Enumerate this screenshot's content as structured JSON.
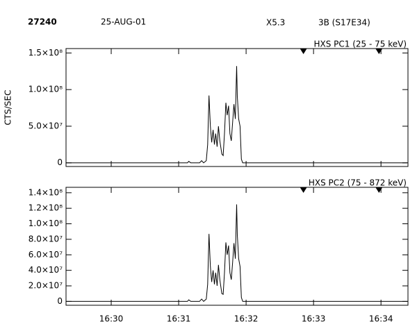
{
  "header": {
    "event": "27240",
    "date": "25-AUG-01",
    "class": "X5.3",
    "flare": "3B (S17E34)"
  },
  "chart_data": [
    {
      "type": "line",
      "subtitle": "HXS PC1 (25 - 75 keV)",
      "y_label": "CTS/SEC",
      "xlim": [
        989.33,
        994.4
      ],
      "ylim": [
        -5000000,
        156000000
      ],
      "yticks": [
        0,
        {
          "value": 50000000,
          "label": "5.0×10⁷"
        },
        {
          "value": 100000000,
          "label": "1.0×10⁸"
        },
        {
          "value": 150000000,
          "label": "1.5×10⁸"
        }
      ],
      "markers": [
        992.85,
        993.97
      ],
      "series": [
        {
          "color": "#000000",
          "x": [
            989.33,
            991.0,
            991.13,
            991.15,
            991.18,
            991.31,
            991.34,
            991.37,
            991.41,
            991.43,
            991.45,
            991.47,
            991.49,
            991.51,
            991.53,
            991.55,
            991.57,
            991.59,
            991.61,
            991.64,
            991.66,
            991.68,
            991.7,
            991.72,
            991.74,
            991.76,
            991.78,
            991.8,
            991.82,
            991.84,
            991.86,
            991.87,
            991.89,
            991.91,
            991.93,
            991.95,
            994.39
          ],
          "values": [
            0,
            0,
            0,
            2000000,
            0,
            0,
            3000000,
            0,
            3000000,
            25000000,
            92000000,
            50000000,
            28000000,
            45000000,
            25000000,
            40000000,
            22000000,
            50000000,
            30000000,
            12000000,
            10000000,
            40000000,
            82000000,
            65000000,
            78000000,
            40000000,
            30000000,
            55000000,
            80000000,
            60000000,
            132000000,
            90000000,
            60000000,
            50000000,
            5000000,
            0,
            0
          ]
        }
      ]
    },
    {
      "type": "line",
      "subtitle": "HXS PC2 (75 - 872 keV)",
      "xlim": [
        989.33,
        994.4
      ],
      "ylim": [
        -5000000,
        147000000
      ],
      "xticks": [
        {
          "value": 990,
          "label": "16:30"
        },
        {
          "value": 991,
          "label": "16:31"
        },
        {
          "value": 992,
          "label": "16:32"
        },
        {
          "value": 993,
          "label": "16:33"
        },
        {
          "value": 994,
          "label": "16:34"
        }
      ],
      "yticks": [
        0,
        {
          "value": 20000000,
          "label": "2.0×10⁷"
        },
        {
          "value": 40000000,
          "label": "4.0×10⁷"
        },
        {
          "value": 60000000,
          "label": "6.0×10⁷"
        },
        {
          "value": 80000000,
          "label": "8.0×10⁷"
        },
        {
          "value": 100000000,
          "label": "1.0×10⁸"
        },
        {
          "value": 120000000,
          "label": "1.2×10⁸"
        },
        {
          "value": 140000000,
          "label": "1.4×10⁸"
        }
      ],
      "markers": [
        992.85,
        993.97
      ],
      "series": [
        {
          "color": "#000000",
          "x": [
            989.33,
            991.0,
            991.13,
            991.15,
            991.18,
            991.31,
            991.34,
            991.37,
            991.41,
            991.43,
            991.45,
            991.47,
            991.49,
            991.51,
            991.53,
            991.55,
            991.57,
            991.59,
            991.61,
            991.64,
            991.66,
            991.68,
            991.7,
            991.72,
            991.74,
            991.76,
            991.78,
            991.8,
            991.82,
            991.84,
            991.86,
            991.87,
            991.89,
            991.91,
            991.93,
            991.95,
            994.39
          ],
          "values": [
            0,
            0,
            0,
            2000000,
            0,
            0,
            3000000,
            0,
            3000000,
            22000000,
            87000000,
            45000000,
            25000000,
            40000000,
            22000000,
            37000000,
            20000000,
            47000000,
            28000000,
            10000000,
            9000000,
            37000000,
            76000000,
            60000000,
            72000000,
            37000000,
            28000000,
            50000000,
            75000000,
            55000000,
            125000000,
            85000000,
            55000000,
            45000000,
            5000000,
            0,
            0
          ]
        }
      ]
    }
  ]
}
